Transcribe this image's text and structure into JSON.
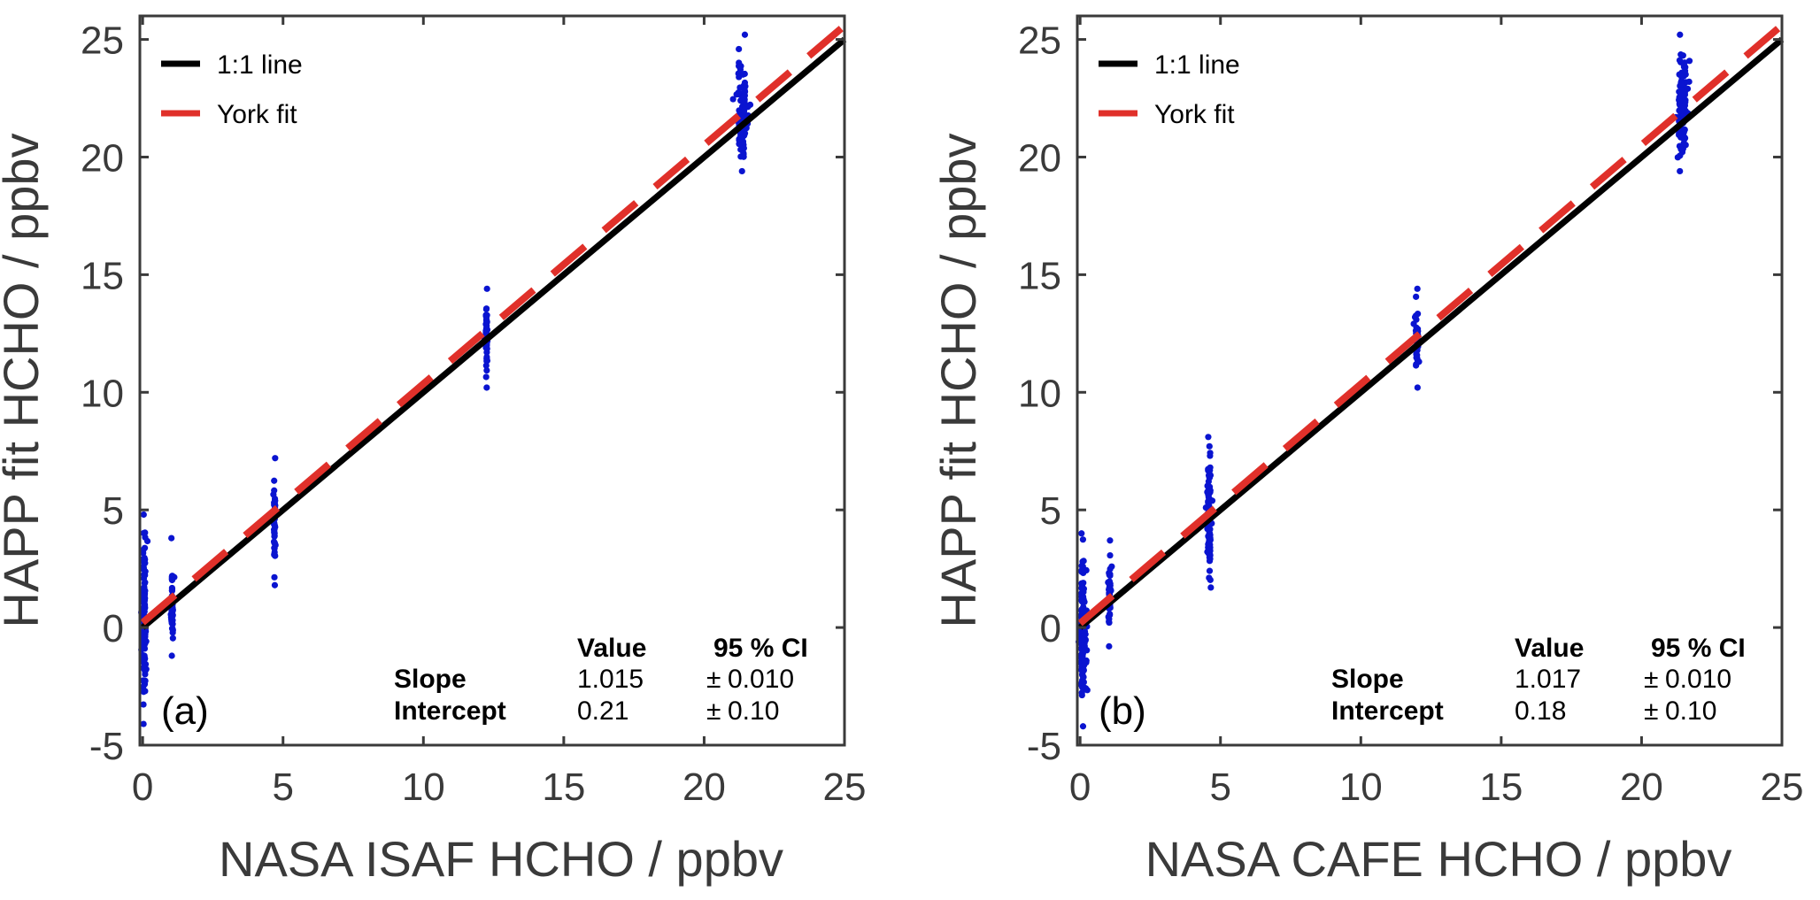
{
  "chart_data": [
    {
      "type": "scatter",
      "panel_label": "(a)",
      "xlabel": "NASA ISAF HCHO / ppbv",
      "ylabel": "HAPP fit HCHO / ppbv",
      "xlim": [
        -0.1,
        25
      ],
      "ylim": [
        -5,
        26
      ],
      "xticks": [
        0,
        5,
        10,
        15,
        20,
        25
      ],
      "yticks": [
        -5,
        0,
        5,
        10,
        15,
        20,
        25
      ],
      "grid": false,
      "legend": {
        "placement": "top-left",
        "entries": [
          {
            "label": "1:1 line",
            "color": "#000000",
            "style": "solid"
          },
          {
            "label": "York fit",
            "color": "#e0302a",
            "style": "dashed"
          }
        ]
      },
      "series": [
        {
          "name": "1:1 line",
          "type": "line",
          "slope": 1.0,
          "intercept": 0.0,
          "x_range": [
            0,
            25
          ],
          "color": "#000000"
        },
        {
          "name": "York fit",
          "type": "line",
          "slope": 1.015,
          "intercept": 0.21,
          "x_range": [
            0,
            25
          ],
          "color": "#e0302a"
        },
        {
          "name": "measurements",
          "type": "scatter",
          "color": "#0a14d0",
          "clusters": [
            {
              "x": 0.05,
              "x_spread": 0.12,
              "y_min": -4.1,
              "y_max": 4.8,
              "y_center": 0.3,
              "count": 140
            },
            {
              "x": 1.05,
              "x_spread": 0.08,
              "y_min": -1.2,
              "y_max": 3.8,
              "y_center": 0.9,
              "count": 45
            },
            {
              "x": 4.7,
              "x_spread": 0.06,
              "y_min": 1.8,
              "y_max": 7.2,
              "y_center": 4.8,
              "count": 45
            },
            {
              "x": 12.25,
              "x_spread": 0.07,
              "y_min": 10.2,
              "y_max": 14.4,
              "y_center": 12.4,
              "count": 50
            },
            {
              "x": 21.35,
              "x_spread": 0.35,
              "y_min": 19.4,
              "y_max": 25.2,
              "y_center": 21.8,
              "count": 110
            }
          ]
        }
      ],
      "stats": {
        "headers": [
          "Value",
          "95 % CI"
        ],
        "rows": [
          {
            "name": "Slope",
            "value": "1.015",
            "pm": "±",
            "ci": "0.010"
          },
          {
            "name": "Intercept",
            "value": "0.21",
            "pm": "±",
            "ci": "0.10"
          }
        ]
      }
    },
    {
      "type": "scatter",
      "panel_label": "(b)",
      "xlabel": "NASA CAFE HCHO / ppbv",
      "ylabel": "HAPP fit HCHO / ppbv",
      "xlim": [
        -0.1,
        25
      ],
      "ylim": [
        -5,
        26
      ],
      "xticks": [
        0,
        5,
        10,
        15,
        20,
        25
      ],
      "yticks": [
        -5,
        0,
        5,
        10,
        15,
        20,
        25
      ],
      "grid": false,
      "legend": {
        "placement": "top-left",
        "entries": [
          {
            "label": "1:1 line",
            "color": "#000000",
            "style": "solid"
          },
          {
            "label": "York fit",
            "color": "#e0302a",
            "style": "dashed"
          }
        ]
      },
      "series": [
        {
          "name": "1:1 line",
          "type": "line",
          "slope": 1.0,
          "intercept": 0.0,
          "x_range": [
            0,
            25
          ],
          "color": "#000000"
        },
        {
          "name": "York fit",
          "type": "line",
          "slope": 1.017,
          "intercept": 0.18,
          "x_range": [
            0,
            25
          ],
          "color": "#e0302a"
        },
        {
          "name": "measurements",
          "type": "scatter",
          "color": "#0a14d0",
          "clusters": [
            {
              "x": 0.1,
              "x_spread": 0.18,
              "y_min": -4.2,
              "y_max": 4.0,
              "y_center": 0.0,
              "count": 170
            },
            {
              "x": 1.05,
              "x_spread": 0.08,
              "y_min": -0.8,
              "y_max": 3.7,
              "y_center": 1.2,
              "count": 45
            },
            {
              "x": 4.6,
              "x_spread": 0.12,
              "y_min": 1.7,
              "y_max": 8.1,
              "y_center": 4.8,
              "count": 110
            },
            {
              "x": 12.0,
              "x_spread": 0.12,
              "y_min": 10.2,
              "y_max": 14.4,
              "y_center": 12.2,
              "count": 45
            },
            {
              "x": 21.45,
              "x_spread": 0.35,
              "y_min": 19.4,
              "y_max": 25.2,
              "y_center": 22.0,
              "count": 110
            }
          ]
        }
      ],
      "stats": {
        "headers": [
          "Value",
          "95 % CI"
        ],
        "rows": [
          {
            "name": "Slope",
            "value": "1.017",
            "pm": "±",
            "ci": "0.010"
          },
          {
            "name": "Intercept",
            "value": "0.18",
            "pm": "±",
            "ci": "0.10"
          }
        ]
      }
    }
  ]
}
